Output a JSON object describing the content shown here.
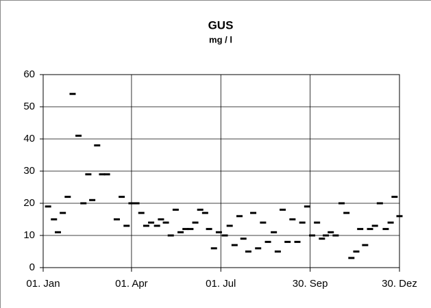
{
  "chart_data": {
    "type": "scatter",
    "title": "GUS",
    "subtitle": "mg / l",
    "x": [
      6,
      12,
      16,
      21,
      26,
      31,
      37,
      42,
      47,
      51,
      56,
      61,
      66,
      76,
      81,
      86,
      91,
      96,
      101,
      106,
      111,
      117,
      121,
      126,
      131,
      136,
      141,
      146,
      151,
      156,
      161,
      166,
      170,
      175,
      180,
      186,
      191,
      196,
      201,
      205,
      210,
      215,
      220,
      225,
      230,
      236,
      240,
      245,
      250,
      255,
      260,
      265,
      270,
      275,
      280,
      285,
      289,
      294,
      299,
      305,
      310,
      315,
      320,
      324,
      329,
      334,
      339,
      344,
      350,
      355,
      359,
      364
    ],
    "values": [
      19,
      15,
      11,
      17,
      22,
      54,
      41,
      20,
      29,
      21,
      38,
      29,
      29,
      15,
      22,
      13,
      20,
      20,
      17,
      13,
      14,
      13,
      15,
      14,
      10,
      18,
      11,
      12,
      12,
      14,
      18,
      17,
      12,
      6,
      11,
      10,
      13,
      7,
      16,
      9,
      5,
      17,
      6,
      14,
      8,
      11,
      5,
      18,
      8,
      15,
      8,
      14,
      19,
      10,
      14,
      9,
      10,
      11,
      10,
      20,
      17,
      3,
      5,
      12,
      7,
      12,
      13,
      20,
      12,
      14,
      22,
      16
    ],
    "color": "#000000",
    "xlim": [
      1,
      364
    ],
    "xticks": [
      {
        "value": 1,
        "label": "01. Jan"
      },
      {
        "value": 91,
        "label": "01. Apr"
      },
      {
        "value": 182,
        "label": "01. Jul"
      },
      {
        "value": 273,
        "label": "30. Sep"
      },
      {
        "value": 364,
        "label": "30. Dez"
      }
    ],
    "ylim": [
      0,
      60
    ],
    "yticks": [
      0,
      10,
      20,
      30,
      40,
      50,
      60
    ],
    "grid": true
  }
}
